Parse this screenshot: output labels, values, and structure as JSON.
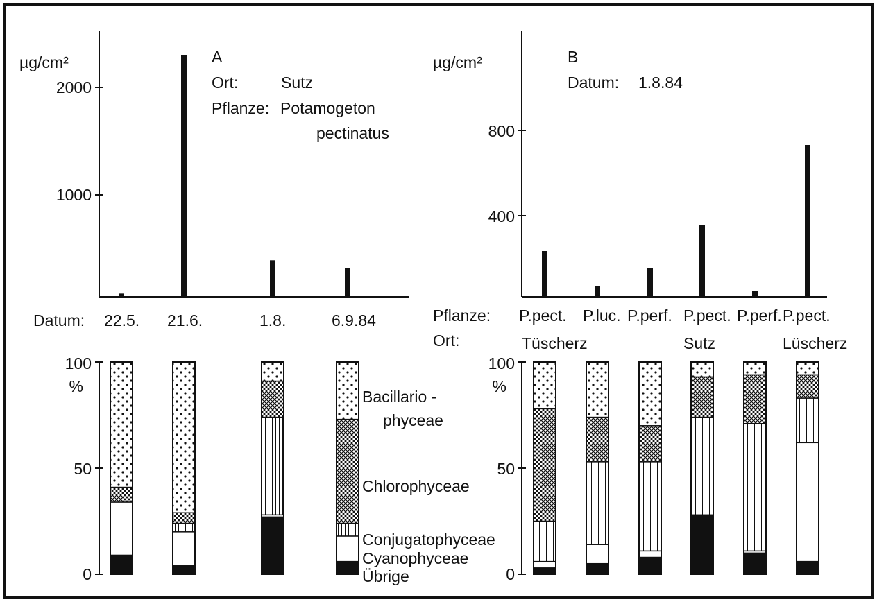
{
  "colors": {
    "ink": "#111111",
    "background": "#ffffff"
  },
  "chart_data": [
    {
      "type": "bar",
      "panel": "A",
      "ylabel": "µg/cm²",
      "yticks": [
        "1000",
        "2000"
      ],
      "ylim": [
        0,
        2500
      ],
      "info": [
        {
          "key": "Ort:",
          "value": "Sutz"
        },
        {
          "key": "Pflanze:",
          "value": "Potamogeton",
          "value2": "pectinatus"
        }
      ],
      "xlabel": "Datum:",
      "categories": [
        "22.5.",
        "21.6.",
        "1.8.",
        "6.9.84"
      ],
      "values": [
        30,
        2250,
        340,
        270
      ]
    },
    {
      "type": "bar",
      "panel": "B",
      "ylabel": "µg/cm²",
      "yticks": [
        "400",
        "800"
      ],
      "ylim": [
        0,
        1250
      ],
      "info": [
        {
          "key": "Datum:",
          "value": "1.8.84"
        }
      ],
      "row_labels": {
        "plant": "Pflanze:",
        "site": "Ort:"
      },
      "categories": [
        "P.pect.",
        "P.luc.",
        "P.perf.",
        "P.pect.",
        "P.perf.",
        "P.pect."
      ],
      "sites": [
        "Tüscherz",
        "Sutz",
        "Lüscherz"
      ],
      "values": [
        220,
        50,
        140,
        345,
        30,
        730
      ]
    },
    {
      "type": "stacked-bar",
      "panel": "A-composition",
      "ylabel": "%",
      "yticks": [
        "0",
        "50",
        "100"
      ],
      "ylim": [
        0,
        100
      ],
      "categories": [
        "22.5.",
        "21.6.",
        "1.8.",
        "6.9.84"
      ],
      "series": [
        {
          "name": "Übrige",
          "pattern": "solid",
          "values": [
            9,
            4,
            27,
            6
          ]
        },
        {
          "name": "Cyanophyceae",
          "pattern": "white",
          "values": [
            25,
            16,
            1,
            12
          ]
        },
        {
          "name": "Conjugatophyceae",
          "pattern": "vertical",
          "values": [
            0,
            4,
            46,
            6
          ]
        },
        {
          "name": "Chlorophyceae",
          "pattern": "crosshatch",
          "values": [
            7,
            5,
            17,
            49
          ]
        },
        {
          "name": "Bacillariophyceae",
          "pattern": "dots",
          "values": [
            59,
            71,
            9,
            27
          ]
        }
      ],
      "legend_lines": [
        {
          "text": "Bacillario -",
          "series": "Bacillariophyceae"
        },
        {
          "text": "phyceae",
          "series": "Bacillariophyceae"
        },
        {
          "text": "Chlorophyceae",
          "series": "Chlorophyceae"
        },
        {
          "text": "Conjugatophyceae",
          "series": "Conjugatophyceae"
        },
        {
          "text": "Cyanophyceae",
          "series": "Cyanophyceae"
        },
        {
          "text": "Übrige",
          "series": "Übrige"
        }
      ]
    },
    {
      "type": "stacked-bar",
      "panel": "B-composition",
      "ylabel": "%",
      "yticks": [
        "0",
        "50",
        "100"
      ],
      "ylim": [
        0,
        100
      ],
      "categories": [
        "P.pect. Tüscherz",
        "P.luc. Tüscherz",
        "P.perf. Tüscherz",
        "P.pect. Sutz",
        "P.perf. Sutz",
        "P.pect. Lüscherz"
      ],
      "series": [
        {
          "name": "Übrige",
          "pattern": "solid",
          "values": [
            3,
            5,
            8,
            28,
            10,
            6
          ]
        },
        {
          "name": "Cyanophyceae",
          "pattern": "white",
          "values": [
            3,
            9,
            3,
            0,
            1,
            56
          ]
        },
        {
          "name": "Conjugatophyceae",
          "pattern": "vertical",
          "values": [
            19,
            39,
            42,
            46,
            60,
            21
          ]
        },
        {
          "name": "Chlorophyceae",
          "pattern": "crosshatch",
          "values": [
            53,
            21,
            17,
            19,
            23,
            11
          ]
        },
        {
          "name": "Bacillariophyceae",
          "pattern": "dots",
          "values": [
            22,
            26,
            30,
            7,
            6,
            6
          ]
        }
      ]
    }
  ]
}
